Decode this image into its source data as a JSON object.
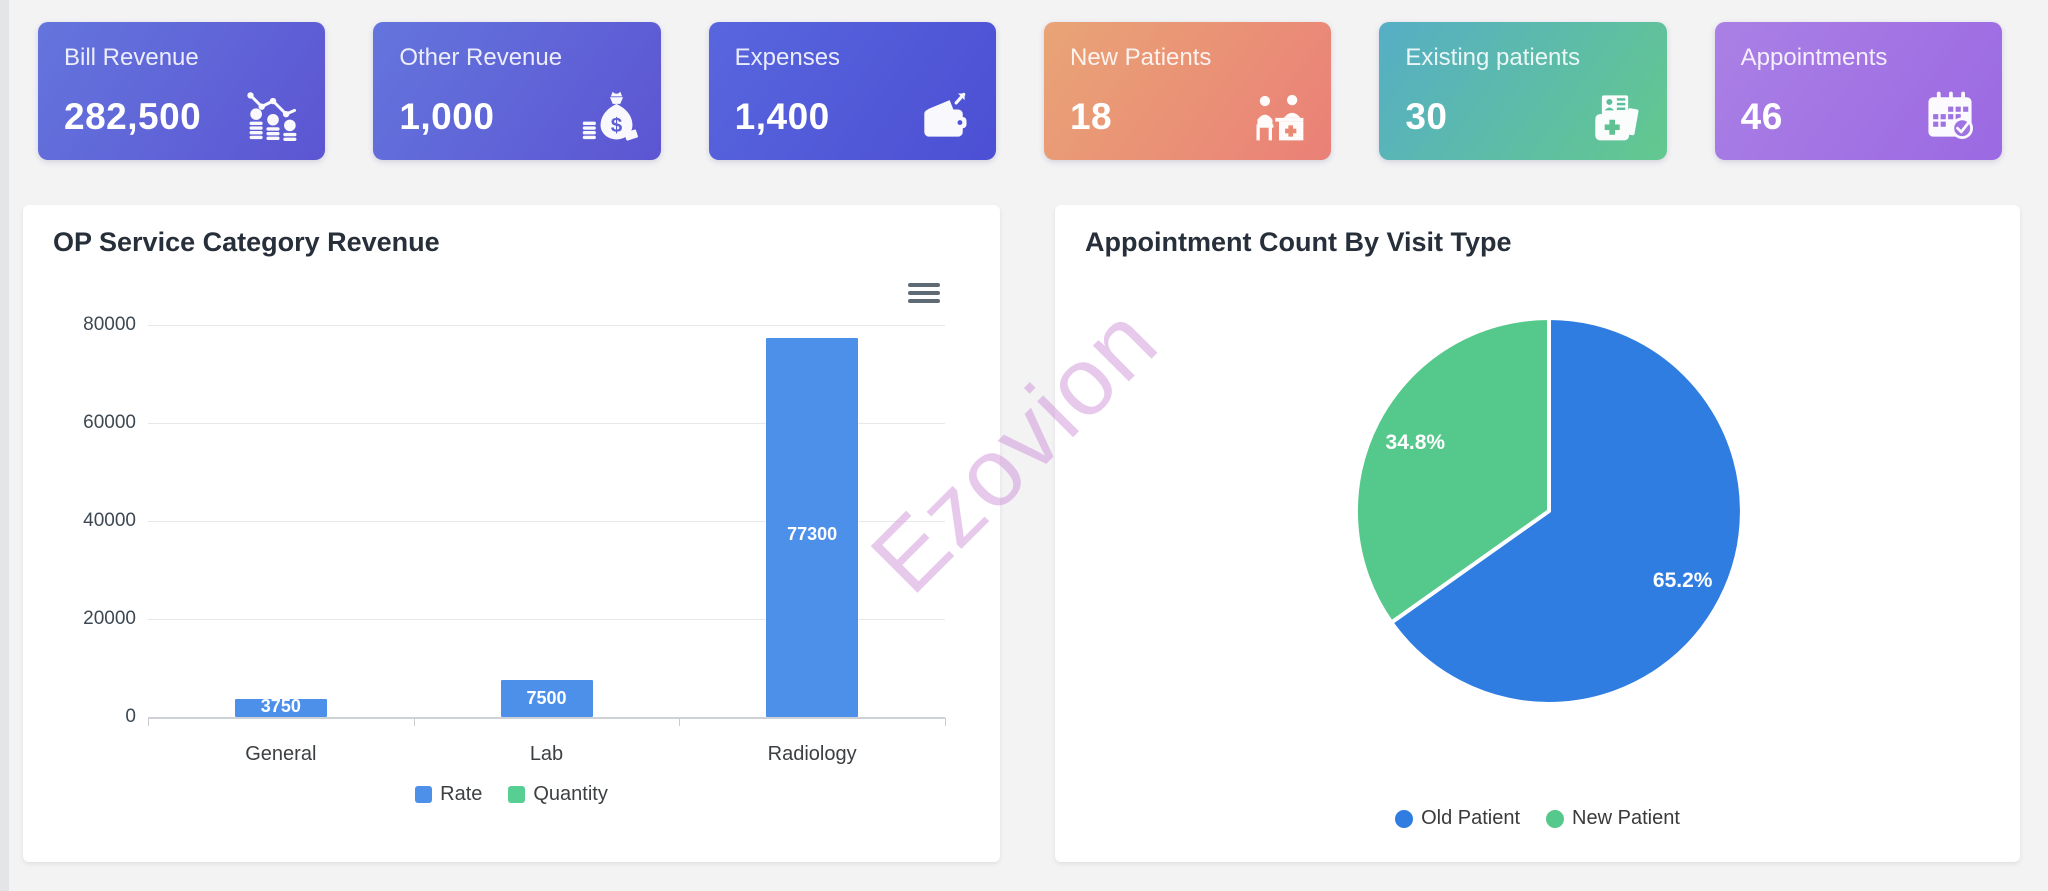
{
  "page": {
    "background": "#f3f3f4"
  },
  "kpi_cards": [
    {
      "label": "Bill Revenue",
      "value": "282,500",
      "icon": "coins-trend-down-icon",
      "gradient": [
        "#6475dd",
        "#5c55d2"
      ]
    },
    {
      "label": "Other Revenue",
      "value": "1,000",
      "icon": "money-bag-icon",
      "gradient": [
        "#6475dd",
        "#5c55d2"
      ]
    },
    {
      "label": "Expenses",
      "value": "1,400",
      "icon": "wallet-icon",
      "gradient": [
        "#5866de",
        "#4c4fd3"
      ]
    },
    {
      "label": "New Patients",
      "value": "18",
      "icon": "reception-patients-icon",
      "gradient": [
        "#e9a476",
        "#ea8077"
      ]
    },
    {
      "label": "Existing patients",
      "value": "30",
      "icon": "medical-records-bag-icon",
      "gradient": [
        "#55aec5",
        "#63c88e"
      ]
    },
    {
      "label": "Appointments",
      "value": "46",
      "icon": "calendar-check-icon",
      "gradient": [
        "#aa80e5",
        "#9b69e2"
      ]
    }
  ],
  "bar_chart": {
    "menu_icon": "hamburger-menu-icon"
  },
  "watermark": {
    "text": "Ezovion",
    "color": "#cf8fd9"
  },
  "chart_data": [
    {
      "type": "bar",
      "title": "OP Service Category Revenue",
      "categories": [
        "General",
        "Lab",
        "Radiology"
      ],
      "series": [
        {
          "name": "Rate",
          "color": "#4d90ea",
          "values": [
            3750,
            7500,
            77300
          ]
        },
        {
          "name": "Quantity",
          "color": "#57ce92",
          "values": []
        }
      ],
      "bar_labels": [
        "3750",
        "7500",
        "77300"
      ],
      "xlabel": "",
      "ylabel": "",
      "ylim": [
        0,
        80000
      ],
      "yticks": [
        0,
        20000,
        40000,
        60000,
        80000
      ],
      "grid": true,
      "legend_position": "bottom"
    },
    {
      "type": "pie",
      "title": "Appointment Count By Visit Type",
      "labels": [
        "Old Patient",
        "New Patient"
      ],
      "values_percent": [
        65.2,
        34.8
      ],
      "slice_labels": [
        "65.2%",
        "34.8%"
      ],
      "colors": [
        "#2f7de1",
        "#55c98c"
      ],
      "start_angle_deg": -90,
      "legend_position": "bottom"
    }
  ]
}
